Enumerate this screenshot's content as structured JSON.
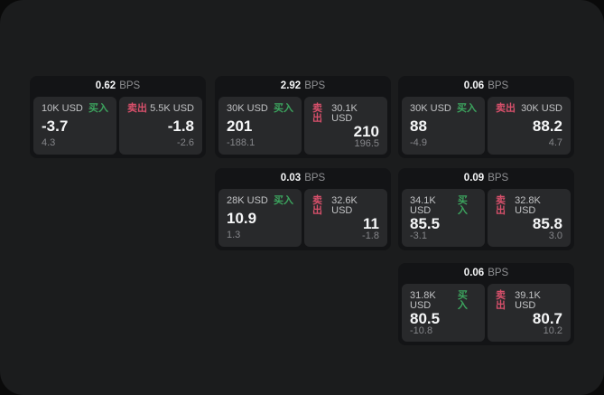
{
  "labels": {
    "bps": "BPS",
    "buy": "买入",
    "sell": "卖出"
  },
  "colors": {
    "buy_green": "#3ca45e",
    "sell_red": "#d8506b",
    "panel_bg": "#1b1c1d",
    "card_bg": "#131416",
    "tile_bg": "#28292b",
    "muted_label": "#8f9093"
  },
  "cards": [
    {
      "bps": "0.62",
      "buy": {
        "amount": "10K USD",
        "value": "-3.7",
        "sub": "4.3"
      },
      "sell": {
        "amount": "5.5K USD",
        "value": "-1.8",
        "sub": "-2.6"
      }
    },
    {
      "bps": "2.92",
      "buy": {
        "amount": "30K USD",
        "value": "201",
        "sub": "-188.1"
      },
      "sell": {
        "amount": "30.1K USD",
        "value": "210",
        "sub": "196.5"
      }
    },
    {
      "bps": "0.06",
      "buy": {
        "amount": "30K USD",
        "value": "88",
        "sub": "-4.9"
      },
      "sell": {
        "amount": "30K USD",
        "value": "88.2",
        "sub": "4.7"
      }
    },
    {
      "bps": "0.03",
      "buy": {
        "amount": "28K USD",
        "value": "10.9",
        "sub": "1.3"
      },
      "sell": {
        "amount": "32.6K USD",
        "value": "11",
        "sub": "-1.8"
      }
    },
    {
      "bps": "0.09",
      "buy": {
        "amount": "34.1K USD",
        "value": "85.5",
        "sub": "-3.1"
      },
      "sell": {
        "amount": "32.8K USD",
        "value": "85.8",
        "sub": "3.0"
      }
    },
    {
      "bps": "0.06",
      "buy": {
        "amount": "31.8K USD",
        "value": "80.5",
        "sub": "-10.8"
      },
      "sell": {
        "amount": "39.1K USD",
        "value": "80.7",
        "sub": "10.2"
      }
    }
  ]
}
